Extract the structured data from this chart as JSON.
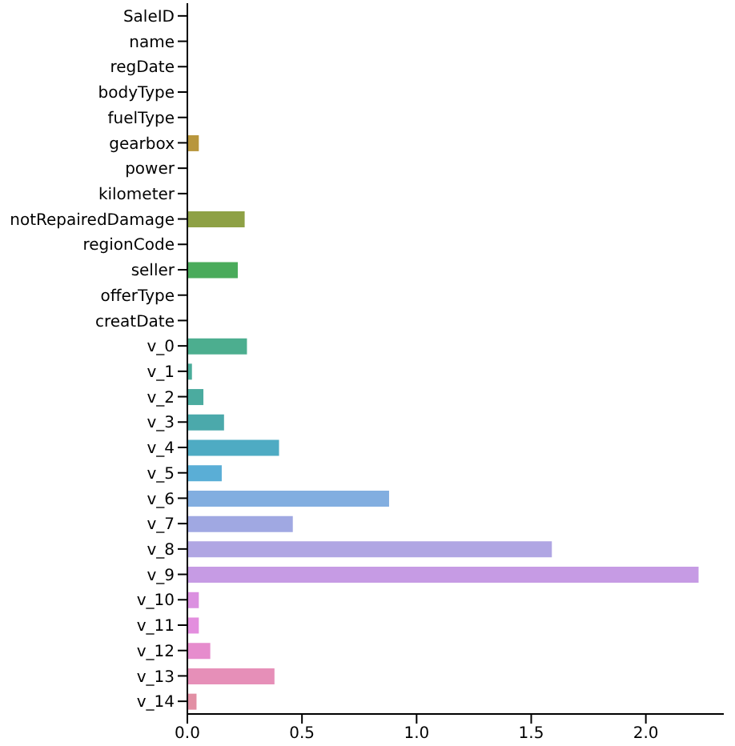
{
  "chart_data": {
    "type": "bar",
    "orientation": "horizontal",
    "categories": [
      "SaleID",
      "name",
      "regDate",
      "bodyType",
      "fuelType",
      "gearbox",
      "power",
      "kilometer",
      "notRepairedDamage",
      "regionCode",
      "seller",
      "offerType",
      "creatDate",
      "v_0",
      "v_1",
      "v_2",
      "v_3",
      "v_4",
      "v_5",
      "v_6",
      "v_7",
      "v_8",
      "v_9",
      "v_10",
      "v_11",
      "v_12",
      "v_13",
      "v_14"
    ],
    "values": [
      0,
      0,
      0,
      0,
      0,
      0.05,
      0,
      0,
      0.25,
      0,
      0.22,
      0,
      0,
      0.26,
      0.02,
      0.07,
      0.16,
      0.4,
      0.15,
      0.88,
      0.46,
      1.59,
      2.23,
      0.05,
      0.05,
      0.1,
      0.38,
      0.04
    ],
    "colors": [
      "#e88a8a",
      "#e08c70",
      "#d49060",
      "#c9935a",
      "#bf9648",
      "#b8963c",
      "#a99b3e",
      "#9d9e40",
      "#8ea145",
      "#78a645",
      "#4aab5b",
      "#4caa75",
      "#4cad85",
      "#4cae8f",
      "#4aac9a",
      "#4bab9f",
      "#4ba9ab",
      "#4eabc3",
      "#5aaed6",
      "#82aee0",
      "#a0a8e2",
      "#b0a6e3",
      "#c69be4",
      "#db90e0",
      "#e38ede",
      "#e68ccd",
      "#e68fb8",
      "#e28fa4"
    ],
    "xlim": [
      0,
      2.34
    ],
    "xticks": [
      {
        "value": 0,
        "label": "0.0"
      },
      {
        "value": 0.5,
        "label": "0.5"
      },
      {
        "value": 1,
        "label": "1.0"
      },
      {
        "value": 1.5,
        "label": "1.5"
      },
      {
        "value": 2,
        "label": "2.0"
      }
    ]
  }
}
